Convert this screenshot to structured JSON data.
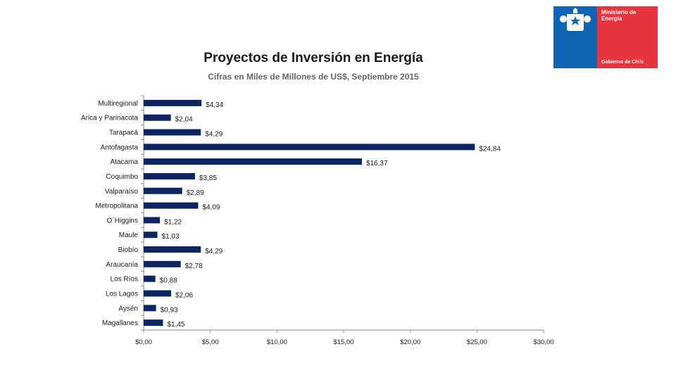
{
  "logo": {
    "name": "escudo-chile-icon",
    "line1": "Ministerio de",
    "line2": "Energía",
    "footer": "Gobierno de Chile",
    "colors": {
      "blue": "#0f64b4",
      "red": "#e8343c"
    }
  },
  "chart_data": {
    "type": "bar",
    "orientation": "horizontal",
    "title": "Proyectos de Inversión en Energía",
    "subtitle": "Cifras en Miles de Millones de US$, Septiembre 2015",
    "xlabel": "",
    "ylabel": "",
    "categories": [
      "Multiregional",
      "Arica y Parinacota",
      "Tarapacá",
      "Antofagasta",
      "Atacama",
      "Coquimbo",
      "Valparaíso",
      "Metropolitana",
      "O´Higgins",
      "Maule",
      "Biobío",
      "Araucanía",
      "Los Ríos",
      "Los Lagos",
      "Aysén",
      "Magallanes"
    ],
    "values": [
      4.34,
      2.04,
      4.29,
      24.84,
      16.37,
      3.85,
      2.89,
      4.09,
      1.22,
      1.03,
      4.29,
      2.78,
      0.88,
      2.06,
      0.93,
      1.45
    ],
    "value_labels": [
      "$4,34",
      "$2,04",
      "$4,29",
      "$24,84",
      "$16,37",
      "$3,85",
      "$2,89",
      "$4,09",
      "$1,22",
      "$1,03",
      "$4,29",
      "$2,78",
      "$0,88",
      "$2,06",
      "$0,93",
      "$1,45"
    ],
    "xlim": [
      0,
      30
    ],
    "xticks": [
      0,
      5,
      10,
      15,
      20,
      25,
      30
    ],
    "xtick_labels": [
      "$0,00",
      "$5,00",
      "$10,00",
      "$15,00",
      "$20,00",
      "$25,00",
      "$30,00"
    ],
    "bar_color": "#0d2560",
    "grid": false,
    "legend": "none"
  }
}
